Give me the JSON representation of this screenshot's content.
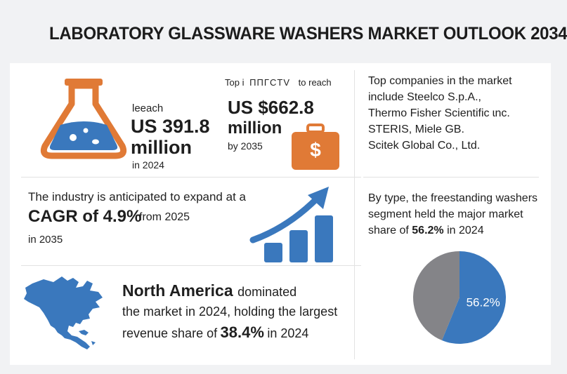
{
  "title": "LABORATORY GLASSWARE WASHERS MARKET OUTLOOK 2034",
  "panel_2024": {
    "prefix": "leeach",
    "value": "US 391.8",
    "unit": "million",
    "year": "in 2024"
  },
  "panel_2035": {
    "header_a": "Top i",
    "header_b": "ΠΠΓCTV",
    "header_c": "to reach",
    "value": "US $662.8",
    "unit": "million",
    "year": "by 2035",
    "bag_symbol": "$"
  },
  "companies": {
    "line1": "Top companies in the market",
    "line2": "include Steelco S.p.A.,",
    "line3": "Thermo Fisher Scientific ɩnc.",
    "line4": "STERIS, Miele GB.",
    "line5": "Scitek Global Co., Ltd."
  },
  "cagr": {
    "line1": "The industry is anticipated to expand at a",
    "value": "CAGR of 4.9%",
    "from": "from 2025",
    "to": "in 2035"
  },
  "segment": {
    "line1": "By type, the freestanding washers",
    "line2": "segment held the major market",
    "line3_a": "share of",
    "pct": "56.2%",
    "line3_b": "in 2024"
  },
  "region": {
    "name": "North America",
    "line1_rest": "dominated",
    "line2": "the market in 2024, holding the largest",
    "line3_a": "revenue share of",
    "pct": "38.4%",
    "line3_b": "in 2024"
  },
  "colors": {
    "orange": "#e07a36",
    "blue": "#3a78bd",
    "gray": "#848488"
  },
  "chart_data": {
    "type": "pie",
    "values": [
      56.2,
      43.8
    ],
    "labels": [
      "56.2%",
      ""
    ],
    "colors": [
      "#3a78bd",
      "#848488"
    ]
  }
}
